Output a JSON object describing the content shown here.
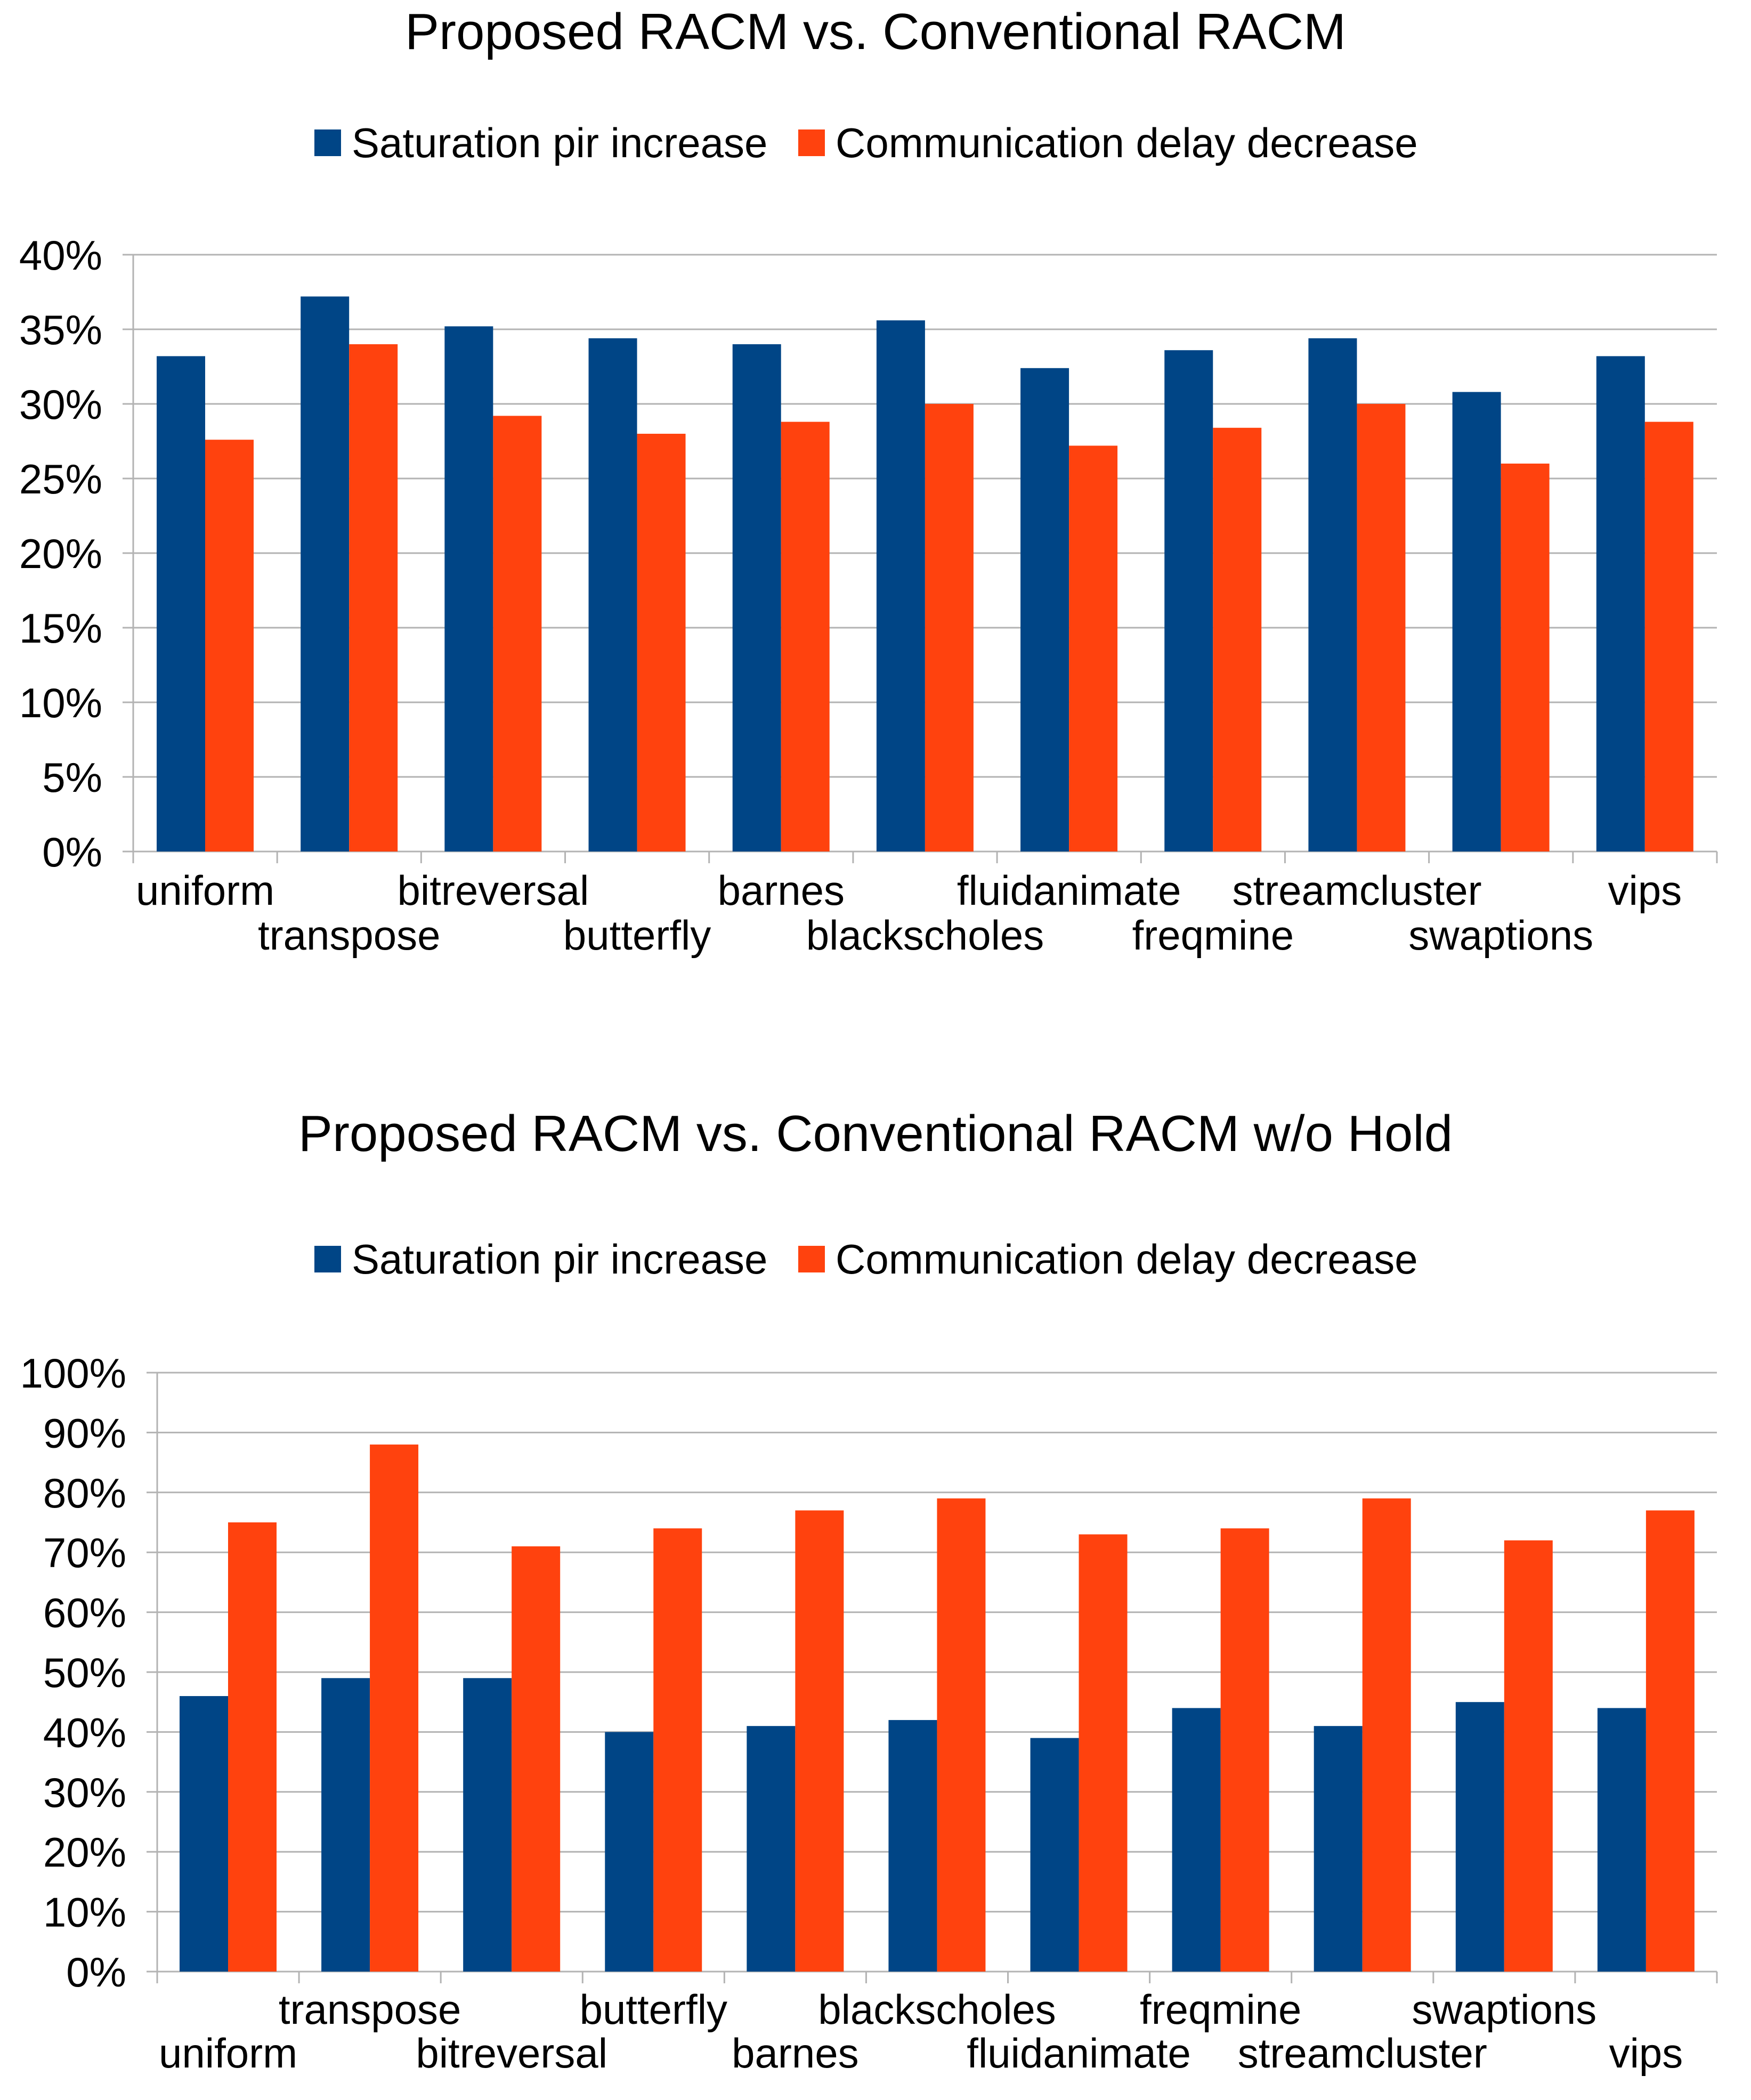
{
  "chart_data": [
    {
      "type": "bar",
      "title": "Proposed RACM vs. Conventional RACM",
      "xlabel": "",
      "ylabel": "",
      "ylim": [
        0,
        40
      ],
      "yticks": [
        "0%",
        "5%",
        "10%",
        "15%",
        "20%",
        "25%",
        "30%",
        "35%",
        "40%"
      ],
      "grid": true,
      "legend_position": "top",
      "categories": [
        "uniform",
        "transpose",
        "bitreversal",
        "butterfly",
        "barnes",
        "blackscholes",
        "fluidanimate",
        "freqmine",
        "streamcluster",
        "swaptions",
        "vips"
      ],
      "series": [
        {
          "name": "Saturation pir increase",
          "color": "#004586",
          "values": [
            33.2,
            37.2,
            35.2,
            34.4,
            34.0,
            35.6,
            32.4,
            33.6,
            34.4,
            30.8,
            33.2
          ]
        },
        {
          "name": "Communication delay decrease",
          "color": "#FF420E",
          "values": [
            27.6,
            34.0,
            29.2,
            28.0,
            28.8,
            30.0,
            27.2,
            28.4,
            30.0,
            26.0,
            28.8
          ]
        }
      ]
    },
    {
      "type": "bar",
      "title": "Proposed RACM vs. Conventional RACM w/o Hold",
      "xlabel": "",
      "ylabel": "",
      "ylim": [
        0,
        100
      ],
      "yticks": [
        "0%",
        "10%",
        "20%",
        "30%",
        "40%",
        "50%",
        "60%",
        "70%",
        "80%",
        "90%",
        "100%"
      ],
      "grid": true,
      "legend_position": "top",
      "categories": [
        "uniform",
        "transpose",
        "bitreversal",
        "butterfly",
        "barnes",
        "blackscholes",
        "fluidanimate",
        "freqmine",
        "streamcluster",
        "swaptions",
        "vips"
      ],
      "series": [
        {
          "name": "Saturation pir increase",
          "color": "#004586",
          "values": [
            46,
            49,
            49,
            40,
            41,
            42,
            39,
            44,
            41,
            45,
            44
          ]
        },
        {
          "name": "Communication delay decrease",
          "color": "#FF420E",
          "values": [
            75,
            88,
            71,
            74,
            77,
            79,
            73,
            74,
            79,
            72,
            77
          ]
        }
      ]
    }
  ]
}
